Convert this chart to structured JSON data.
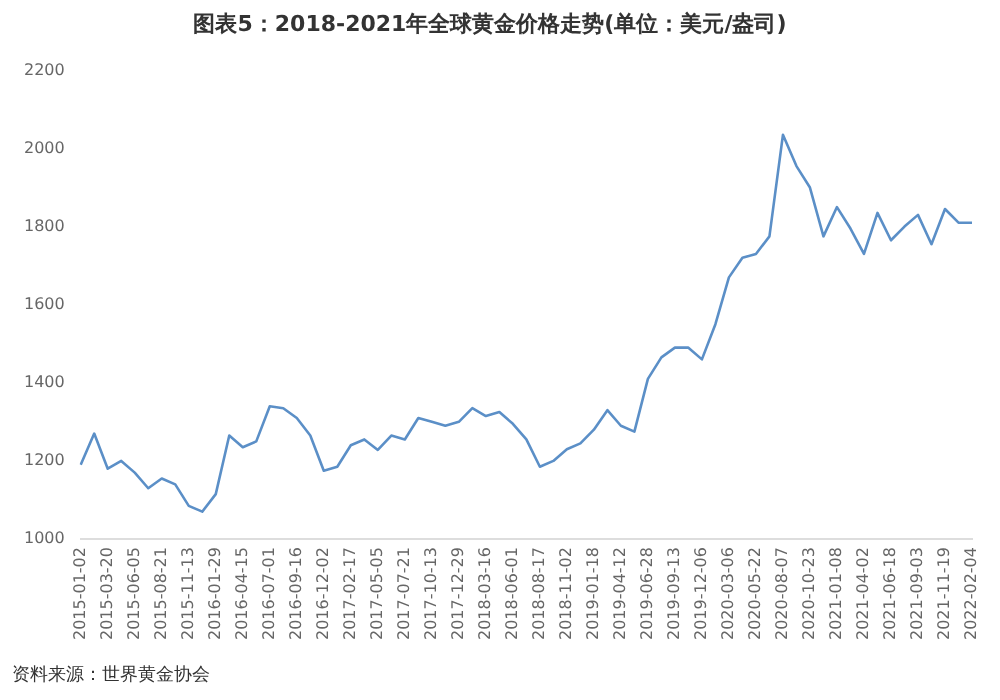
{
  "chart_data": {
    "type": "line",
    "title": "图表5：2018-2021年全球黄金价格走势(单位：美元/盎司)",
    "annotations": [
      "资料来源：世界黄金协会"
    ],
    "categories": [
      "2015-01-02",
      null,
      "2015-03-20",
      null,
      "2015-06-05",
      null,
      "2015-08-21",
      null,
      "2015-11-13",
      null,
      "2016-01-29",
      null,
      "2016-04-15",
      null,
      "2016-07-01",
      null,
      "2016-09-16",
      null,
      "2016-12-02",
      null,
      "2017-02-17",
      null,
      "2017-05-05",
      null,
      "2017-07-21",
      null,
      "2017-10-13",
      null,
      "2017-12-29",
      null,
      "2018-03-16",
      null,
      "2018-06-01",
      null,
      "2018-08-17",
      null,
      "2018-11-02",
      null,
      "2019-01-18",
      null,
      "2019-04-12",
      null,
      "2019-06-28",
      null,
      "2019-09-13",
      null,
      "2019-12-06",
      null,
      "2020-03-06",
      null,
      "2020-05-22",
      null,
      "2020-08-07",
      null,
      "2020-10-23",
      null,
      "2021-01-08",
      null,
      "2021-04-02",
      null,
      "2021-06-18",
      null,
      "2021-09-03",
      null,
      "2021-11-19",
      null,
      "2022-02-04"
    ],
    "series": [
      {
        "color": "#5b8fc7",
        "values": [
          1190,
          1270,
          1180,
          1200,
          1170,
          1130,
          1155,
          1140,
          1085,
          1070,
          1115,
          1265,
          1235,
          1250,
          1340,
          1335,
          1310,
          1265,
          1175,
          1185,
          1240,
          1255,
          1228,
          1265,
          1255,
          1310,
          1300,
          1290,
          1300,
          1335,
          1315,
          1325,
          1295,
          1255,
          1185,
          1200,
          1230,
          1245,
          1280,
          1330,
          1290,
          1275,
          1410,
          1465,
          1490,
          1490,
          1460,
          1550,
          1670,
          1720,
          1730,
          1775,
          2035,
          1955,
          1900,
          1775,
          1850,
          1795,
          1730,
          1835,
          1765,
          1800,
          1830,
          1755,
          1845,
          1810,
          1810
        ]
      }
    ],
    "ylim": [
      1000,
      2200
    ],
    "yticks": [
      1000,
      1200,
      1400,
      1600,
      1800,
      2000,
      2200
    ],
    "grid": false,
    "legend": false,
    "marker": "none",
    "line_style": "solid"
  }
}
